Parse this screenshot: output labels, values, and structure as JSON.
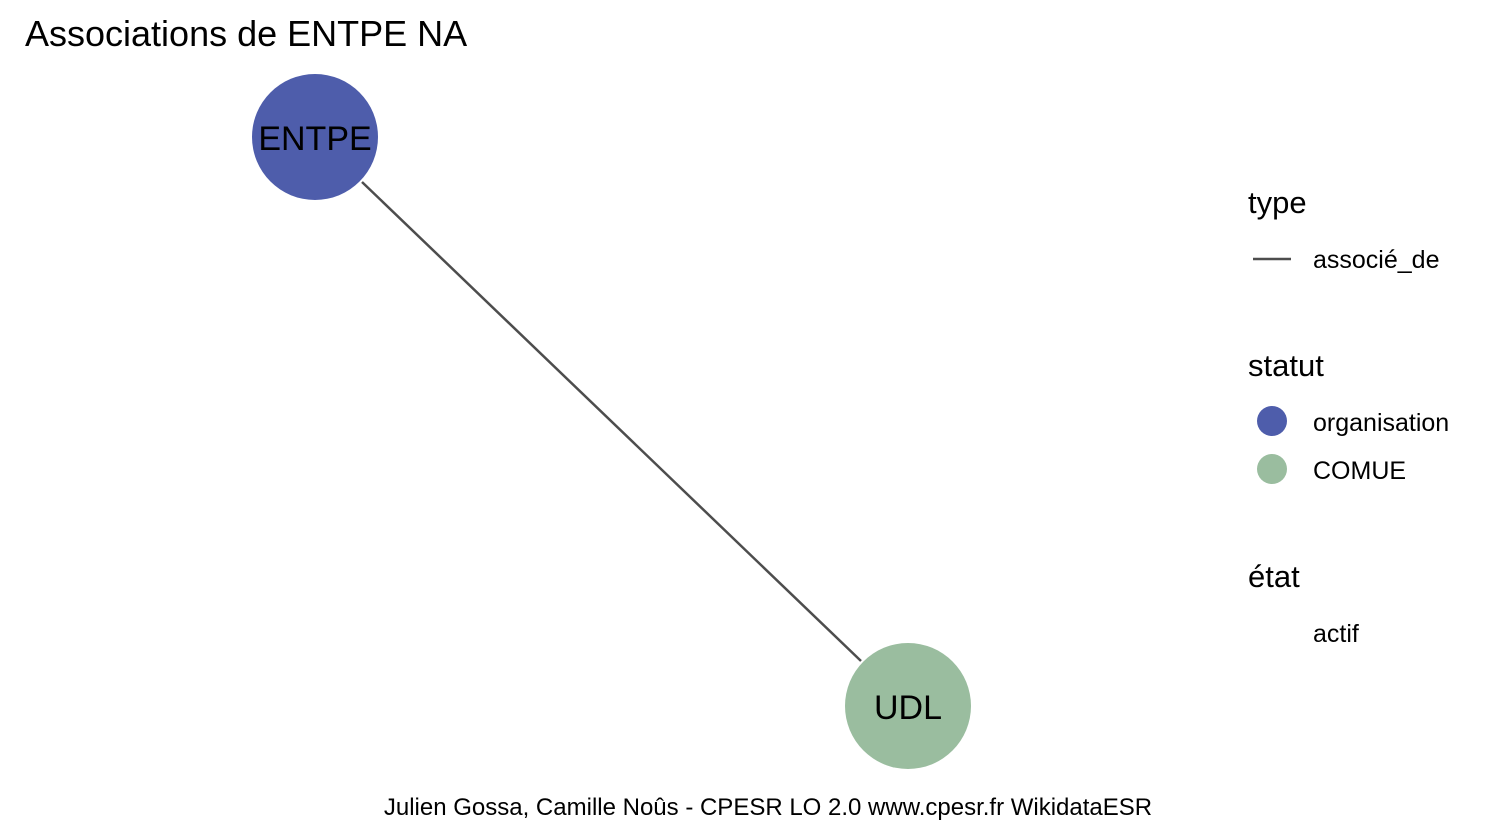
{
  "title": "Associations de ENTPE NA",
  "caption": "Julien Gossa, Camille Noûs - CPESR LO 2.0 www.cpesr.fr WikidataESR",
  "colors": {
    "edge": "#4d4d4d",
    "organisation": "#4e5dab",
    "COMUE": "#9abd9f"
  },
  "graph": {
    "nodes": [
      {
        "id": "ENTPE",
        "label": "ENTPE",
        "statut": "organisation",
        "etat": "actif"
      },
      {
        "id": "UDL",
        "label": "UDL",
        "statut": "COMUE",
        "etat": "actif"
      }
    ],
    "edges": [
      {
        "from": "ENTPE",
        "to": "UDL",
        "type": "associé_de"
      }
    ]
  },
  "legend": {
    "type": {
      "title": "type",
      "items": [
        {
          "label": "associé_de"
        }
      ]
    },
    "statut": {
      "title": "statut",
      "items": [
        {
          "label": "organisation",
          "color": "#4e5dab"
        },
        {
          "label": "COMUE",
          "color": "#9abd9f"
        }
      ]
    },
    "etat": {
      "title": "état",
      "items": [
        {
          "label": "actif"
        }
      ]
    }
  }
}
